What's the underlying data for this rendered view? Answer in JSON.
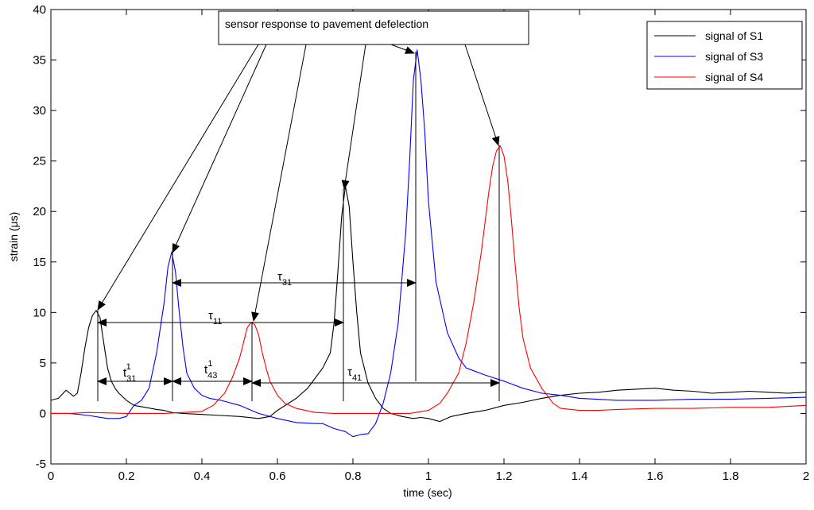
{
  "chart_data": {
    "type": "line",
    "xlabel": "time (sec)",
    "ylabel": "strain  (μs)",
    "xlim": [
      0,
      2
    ],
    "ylim": [
      -5,
      40
    ],
    "xticks": [
      "0",
      "0.2",
      "0.4",
      "0.6",
      "0.8",
      "1",
      "1.2",
      "1.4",
      "1.6",
      "1.8",
      "2"
    ],
    "yticks": [
      "-5",
      "0",
      "5",
      "10",
      "15",
      "20",
      "25",
      "30",
      "35",
      "40"
    ],
    "grid": false,
    "legend_position": "top-right",
    "series": [
      {
        "name": "signal of S1",
        "color": "#000000",
        "x": [
          0,
          0.02,
          0.04,
          0.05,
          0.06,
          0.07,
          0.08,
          0.09,
          0.1,
          0.11,
          0.12,
          0.13,
          0.14,
          0.15,
          0.16,
          0.17,
          0.18,
          0.2,
          0.22,
          0.25,
          0.28,
          0.3,
          0.32,
          0.35,
          0.4,
          0.45,
          0.5,
          0.55,
          0.58,
          0.6,
          0.65,
          0.68,
          0.7,
          0.72,
          0.74,
          0.75,
          0.76,
          0.77,
          0.78,
          0.79,
          0.8,
          0.81,
          0.82,
          0.84,
          0.86,
          0.88,
          0.9,
          0.93,
          0.96,
          0.98,
          1.0,
          1.03,
          1.06,
          1.1,
          1.15,
          1.2,
          1.25,
          1.3,
          1.35,
          1.4,
          1.45,
          1.5,
          1.55,
          1.6,
          1.65,
          1.7,
          1.75,
          1.8,
          1.85,
          1.9,
          1.95,
          2.0
        ],
        "y": [
          1.3,
          1.5,
          2.3,
          2.0,
          1.7,
          2.0,
          4.0,
          6.5,
          8.5,
          9.7,
          10.2,
          9.5,
          7.0,
          4.5,
          3.2,
          2.5,
          2.0,
          1.3,
          0.8,
          0.6,
          0.4,
          0.3,
          0.1,
          0.0,
          -0.1,
          -0.2,
          -0.3,
          -0.5,
          -0.3,
          0.3,
          1.5,
          2.5,
          3.5,
          4.5,
          6.0,
          9.0,
          14.0,
          19.5,
          22.5,
          20.5,
          15.0,
          10.0,
          6.0,
          3.0,
          1.5,
          0.5,
          0.0,
          -0.3,
          -0.5,
          -0.4,
          -0.5,
          -0.8,
          -0.3,
          0.0,
          0.3,
          0.8,
          1.1,
          1.5,
          1.8,
          2.0,
          2.1,
          2.3,
          2.4,
          2.5,
          2.3,
          2.2,
          2.0,
          2.1,
          2.2,
          2.1,
          2.0,
          2.1
        ]
      },
      {
        "name": "signal of S3",
        "color": "#0000ff",
        "x": [
          0,
          0.05,
          0.1,
          0.15,
          0.18,
          0.2,
          0.22,
          0.24,
          0.26,
          0.28,
          0.3,
          0.31,
          0.32,
          0.33,
          0.34,
          0.35,
          0.36,
          0.38,
          0.4,
          0.42,
          0.45,
          0.5,
          0.55,
          0.6,
          0.65,
          0.7,
          0.72,
          0.75,
          0.78,
          0.8,
          0.82,
          0.84,
          0.86,
          0.88,
          0.9,
          0.92,
          0.94,
          0.95,
          0.96,
          0.97,
          0.98,
          0.99,
          1.0,
          1.02,
          1.05,
          1.08,
          1.1,
          1.15,
          1.2,
          1.25,
          1.3,
          1.35,
          1.4,
          1.5,
          1.6,
          1.7,
          1.8,
          1.9,
          2.0
        ],
        "y": [
          0.0,
          0.0,
          -0.2,
          -0.5,
          -0.5,
          -0.3,
          0.8,
          1.3,
          2.5,
          6.0,
          11.0,
          14.5,
          16.0,
          14.0,
          10.0,
          6.5,
          4.0,
          2.5,
          1.8,
          1.5,
          1.3,
          0.8,
          0.0,
          -0.5,
          -0.9,
          -1.0,
          -1.0,
          -1.5,
          -1.8,
          -2.3,
          -2.1,
          -2.0,
          -1.0,
          1.0,
          4.0,
          9.0,
          18.0,
          25.0,
          33.0,
          36.0,
          33.0,
          28.0,
          21.0,
          13.0,
          8.0,
          5.5,
          4.5,
          3.8,
          3.2,
          2.5,
          2.0,
          1.8,
          1.5,
          1.3,
          1.3,
          1.4,
          1.4,
          1.5,
          1.6
        ]
      },
      {
        "name": "signal of S4",
        "color": "#ff0000",
        "x": [
          0,
          0.05,
          0.1,
          0.2,
          0.3,
          0.35,
          0.4,
          0.43,
          0.46,
          0.48,
          0.5,
          0.51,
          0.52,
          0.53,
          0.54,
          0.55,
          0.56,
          0.57,
          0.58,
          0.6,
          0.62,
          0.65,
          0.7,
          0.75,
          0.8,
          0.85,
          0.9,
          0.95,
          1.0,
          1.03,
          1.05,
          1.08,
          1.1,
          1.12,
          1.14,
          1.15,
          1.16,
          1.17,
          1.18,
          1.19,
          1.2,
          1.21,
          1.22,
          1.23,
          1.24,
          1.25,
          1.27,
          1.3,
          1.33,
          1.35,
          1.4,
          1.45,
          1.5,
          1.6,
          1.7,
          1.8,
          1.9,
          2.0
        ],
        "y": [
          0.0,
          0.0,
          0.1,
          0.0,
          0.0,
          0.1,
          0.2,
          0.8,
          2.0,
          3.5,
          5.5,
          7.0,
          8.5,
          9.0,
          8.8,
          7.8,
          6.0,
          4.5,
          3.2,
          1.8,
          1.0,
          0.5,
          0.1,
          0.0,
          0.0,
          0.0,
          0.0,
          0.0,
          0.3,
          1.0,
          2.0,
          4.0,
          7.0,
          11.0,
          16.0,
          19.0,
          22.0,
          24.5,
          26.0,
          26.5,
          25.5,
          23.0,
          19.0,
          14.5,
          10.5,
          7.5,
          4.5,
          2.5,
          1.0,
          0.5,
          0.3,
          0.3,
          0.4,
          0.5,
          0.5,
          0.6,
          0.6,
          0.8
        ]
      }
    ],
    "annotations": {
      "callout_text": "sensor response to pavement defelection",
      "tau_symbol": "τ",
      "t_symbol": "t",
      "labels": [
        {
          "sub": "31",
          "sup": "1",
          "kind": "t"
        },
        {
          "sub": "43",
          "sup": "1",
          "kind": "t"
        },
        {
          "sub": "41",
          "sup": "",
          "kind": "tau"
        },
        {
          "sub": "11",
          "sup": "",
          "kind": "tau"
        },
        {
          "sub": "31",
          "sup": "",
          "kind": "tau"
        }
      ]
    }
  }
}
